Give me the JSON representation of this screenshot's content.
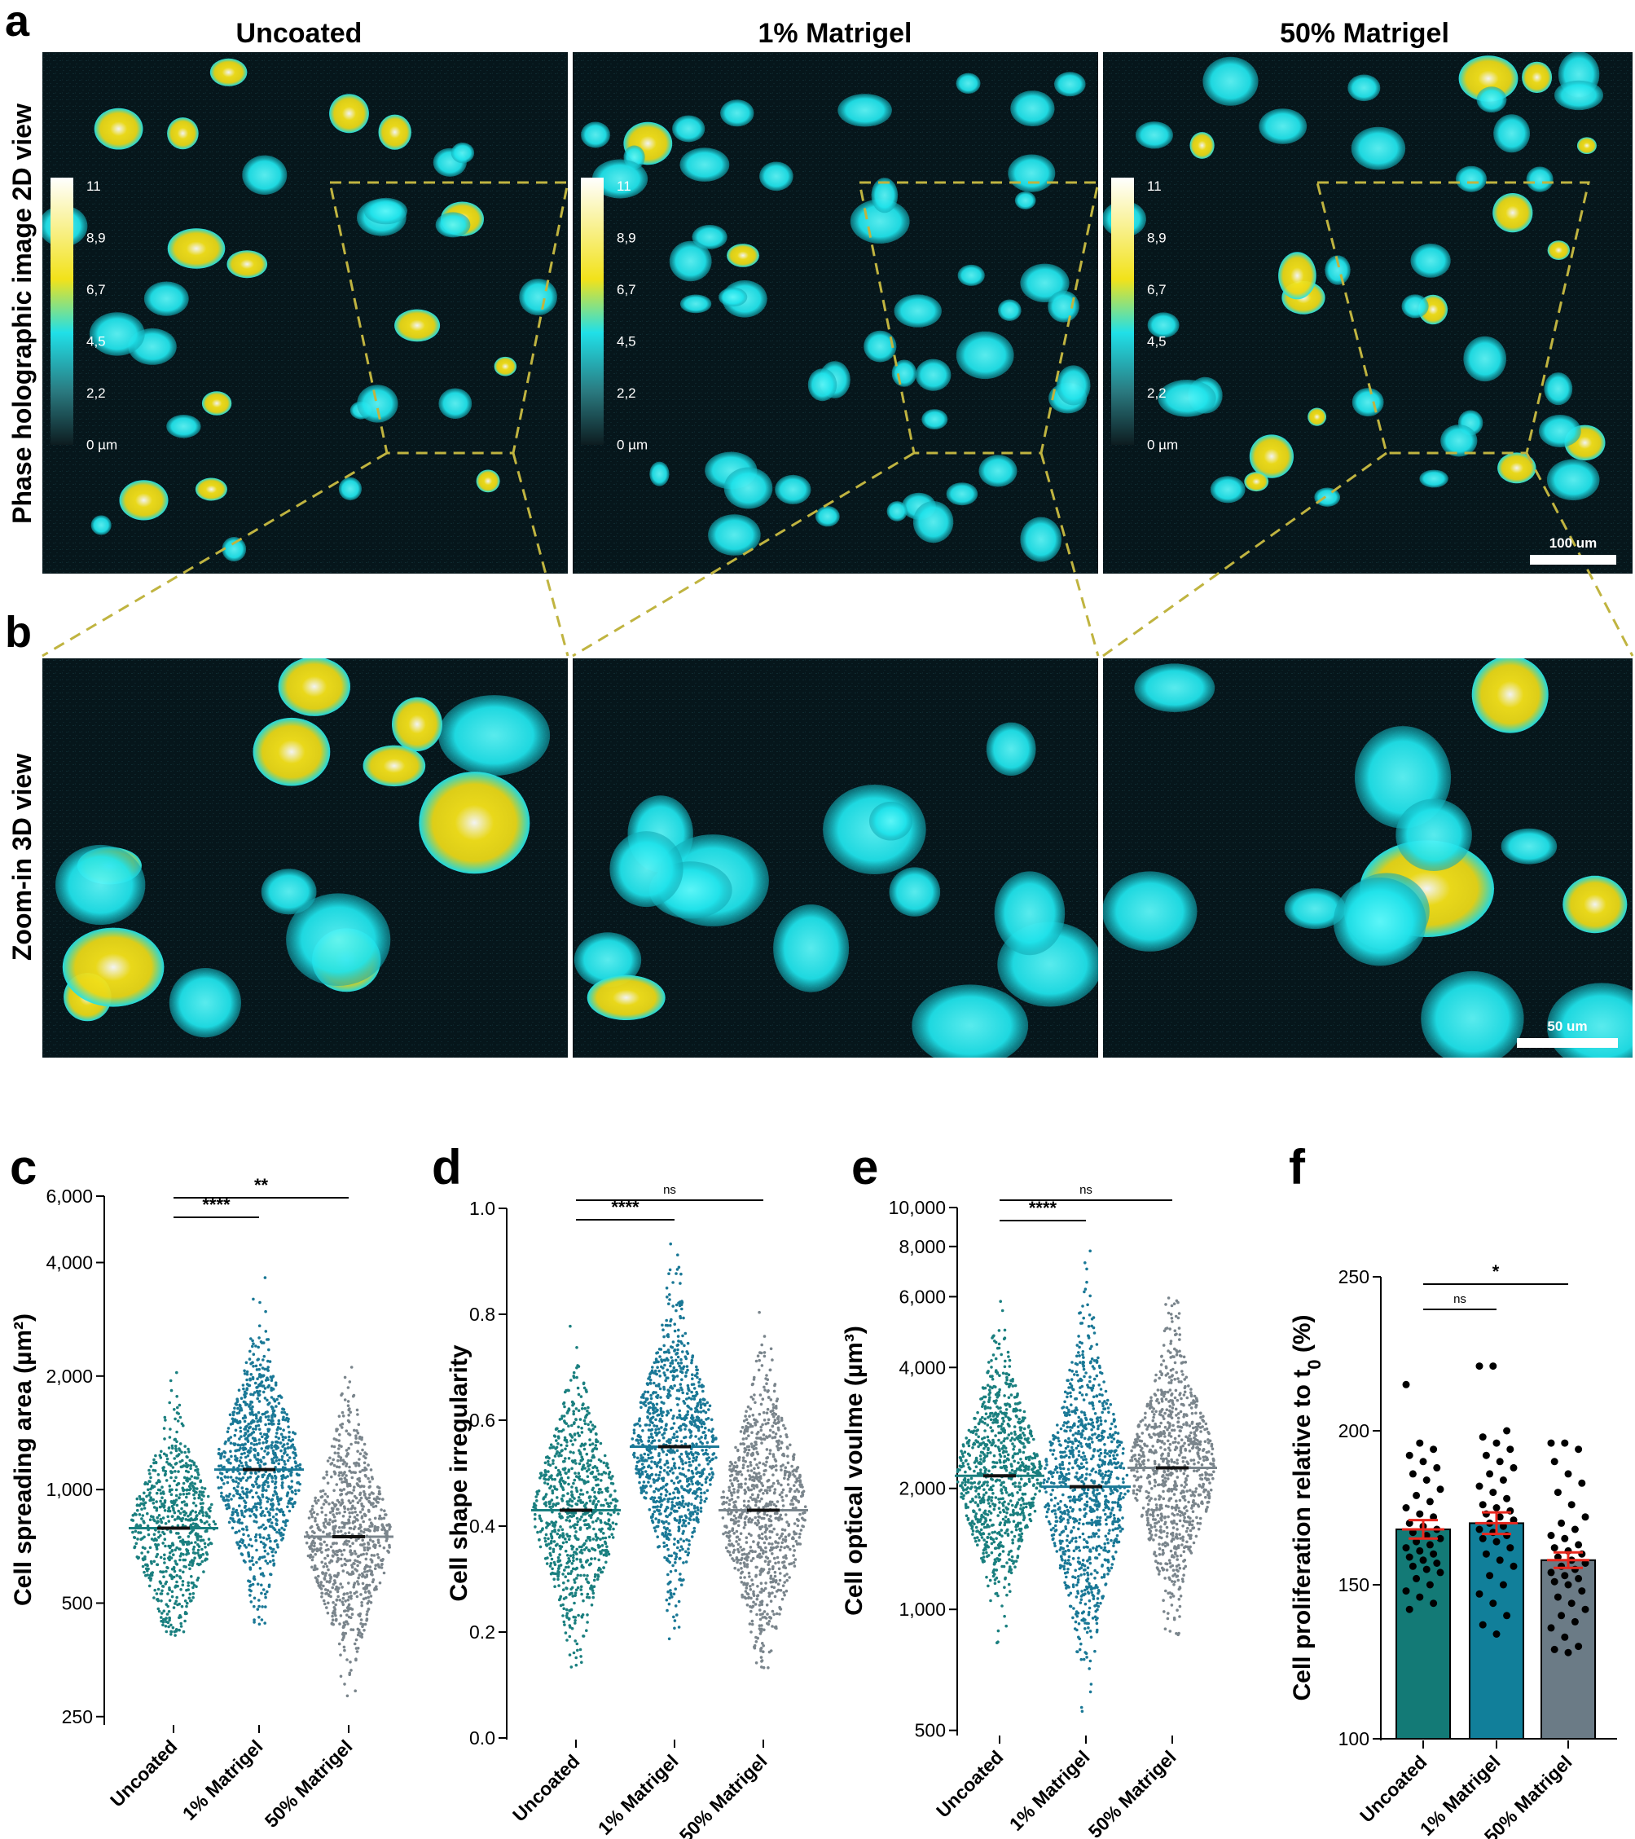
{
  "panel_letters": {
    "a": "a",
    "b": "b",
    "c": "c",
    "d": "d",
    "e": "e",
    "f": "f"
  },
  "conditions": [
    "Uncoated",
    "1% Matrigel",
    "50% Matrigel"
  ],
  "row_labels": {
    "a": "Phase holographic image 2D view",
    "b": "Zoom-in 3D view"
  },
  "colorbar_ticks": [
    "11",
    "8,9",
    "6,7",
    "4,5",
    "2,2",
    "0 µm"
  ],
  "scale_bars": {
    "a": "100 um",
    "b": "50 um"
  },
  "colors": {
    "cell_cyan": "#1fe8ee",
    "cell_yellow": "#f2e21a",
    "image_bg": "#06141a",
    "zoom_lines": "#b8b040",
    "uncoated": "#1a7f7f",
    "matrigel1": "#1a7896",
    "matrigel50": "#7a858c",
    "bar_f": [
      "#137a76",
      "#117f9a",
      "#6b7b86"
    ],
    "err_f": "#e8281e"
  },
  "chart_data": [
    {
      "panel": "c",
      "type": "scatter",
      "ylabel": "Cell spreading area (µm²)",
      "yscale": "log",
      "ylim": [
        240,
        6000
      ],
      "yticks": [
        250,
        500,
        1000,
        2000,
        4000,
        6000
      ],
      "ytick_labels": [
        "250",
        "500",
        "1,000",
        "2,000",
        "4,000",
        "6,000"
      ],
      "categories": [
        "Uncoated",
        "1% Matrigel",
        "50% Matrigel"
      ],
      "series": [
        {
          "mean": 790,
          "min": 410,
          "max": 2900,
          "n": 700
        },
        {
          "mean": 1130,
          "min": 430,
          "max": 4200,
          "n": 900
        },
        {
          "mean": 750,
          "min": 260,
          "max": 2500,
          "n": 800
        }
      ],
      "significance": [
        {
          "pair": [
            0,
            2
          ],
          "label": "**"
        },
        {
          "pair": [
            0,
            1
          ],
          "label": "****"
        }
      ]
    },
    {
      "panel": "d",
      "type": "scatter",
      "ylabel": "Cell shape irregularity",
      "yscale": "linear",
      "ylim": [
        0,
        1.0
      ],
      "yticks": [
        0,
        0.2,
        0.4,
        0.6,
        0.8,
        1.0
      ],
      "ytick_labels": [
        "0.0",
        "0.2",
        "0.4",
        "0.6",
        "0.8",
        "1.0"
      ],
      "categories": [
        "Uncoated",
        "1% Matrigel",
        "50% Matrigel"
      ],
      "series": [
        {
          "mean": 0.43,
          "min": 0.13,
          "max": 0.84,
          "n": 800
        },
        {
          "mean": 0.55,
          "min": 0.16,
          "max": 0.94,
          "n": 1000
        },
        {
          "mean": 0.43,
          "min": 0.1,
          "max": 0.9,
          "n": 900
        }
      ],
      "significance": [
        {
          "pair": [
            0,
            2
          ],
          "label": "ns"
        },
        {
          "pair": [
            0,
            1
          ],
          "label": "****"
        }
      ]
    },
    {
      "panel": "e",
      "type": "scatter",
      "ylabel": "Cell optical voulme (µm³)",
      "yscale": "log",
      "ylim": [
        490,
        10000
      ],
      "yticks": [
        500,
        1000,
        2000,
        4000,
        6000,
        8000,
        10000
      ],
      "ytick_labels": [
        "500",
        "1,000",
        "2,000",
        "4,000",
        "6,000",
        "8,000",
        "10,000"
      ],
      "categories": [
        "Uncoated",
        "1% Matrigel",
        "50% Matrigel"
      ],
      "series": [
        {
          "mean": 2150,
          "min": 820,
          "max": 6500,
          "n": 900
        },
        {
          "mean": 2020,
          "min": 520,
          "max": 7800,
          "n": 1000
        },
        {
          "mean": 2250,
          "min": 860,
          "max": 7800,
          "n": 900
        }
      ],
      "significance": [
        {
          "pair": [
            0,
            2
          ],
          "label": "ns"
        },
        {
          "pair": [
            0,
            1
          ],
          "label": "****"
        }
      ]
    },
    {
      "panel": "f",
      "type": "bar",
      "ylabel": "Cell proliferation relative to t",
      "ylabel_sub": "0",
      "ylabel_suffix": " (%)",
      "ylim": [
        100,
        250
      ],
      "yticks": [
        100,
        150,
        200,
        250
      ],
      "ytick_labels": [
        "100",
        "150",
        "200",
        "250"
      ],
      "categories": [
        "Uncoated",
        "1% Matrigel",
        "50% Matrigel"
      ],
      "values": [
        168,
        170,
        158
      ],
      "sem": [
        3,
        3.5,
        2.5
      ],
      "points": [
        [
          215,
          196,
          194,
          192,
          190,
          188,
          186,
          184,
          181,
          179,
          177,
          175,
          173,
          172,
          170,
          169,
          168,
          167,
          166,
          165,
          164,
          163,
          162,
          161,
          160,
          159,
          158,
          157,
          156,
          155,
          154,
          152,
          150,
          148,
          146,
          144,
          142
        ],
        [
          221,
          221,
          200,
          198,
          196,
          194,
          192,
          190,
          188,
          186,
          184,
          182,
          180,
          178,
          176,
          175,
          174,
          173,
          172,
          171,
          170,
          169,
          168,
          167,
          166,
          165,
          164,
          162,
          160,
          158,
          156,
          153,
          150,
          147,
          144,
          140,
          137,
          134
        ],
        [
          196,
          196,
          194,
          190,
          186,
          183,
          180,
          176,
          172,
          170,
          168,
          166,
          165,
          163,
          162,
          161,
          160,
          159,
          158,
          157,
          156,
          155,
          154,
          153,
          152,
          151,
          150,
          148,
          146,
          144,
          142,
          140,
          138,
          136,
          133,
          130,
          129,
          128
        ]
      ],
      "significance": [
        {
          "pair": [
            0,
            2
          ],
          "label": "*"
        },
        {
          "pair": [
            0,
            1
          ],
          "label": "ns"
        }
      ]
    }
  ]
}
